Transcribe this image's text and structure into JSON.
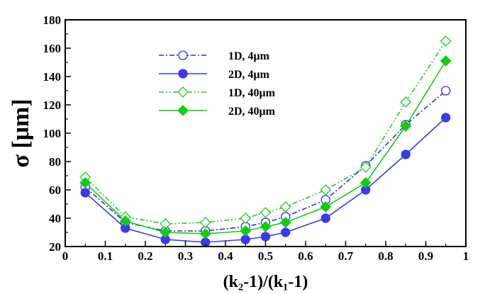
{
  "chart_data": {
    "type": "line",
    "xlabel": "(k₂-1)/(k₁-1)",
    "ylabel": "σ [μm]",
    "xlim": [
      0,
      1
    ],
    "ylim": [
      20,
      180
    ],
    "xticks": [
      0,
      0.1,
      0.2,
      0.3,
      0.4,
      0.5,
      0.6,
      0.7,
      0.8,
      0.9,
      1
    ],
    "xtick_labels": [
      "0",
      "0.1",
      "0.2",
      "0.3",
      "0.4",
      "0.5",
      "0.6",
      "0.7",
      "0.8",
      "0.9",
      "1"
    ],
    "yticks": [
      20,
      40,
      60,
      80,
      100,
      120,
      140,
      160,
      180
    ],
    "ytick_labels": [
      "20",
      "40",
      "60",
      "80",
      "100",
      "120",
      "140",
      "160",
      "180"
    ],
    "grid": false,
    "legend_position": "upper-center",
    "x": [
      0.05,
      0.15,
      0.25,
      0.35,
      0.45,
      0.5,
      0.55,
      0.65,
      0.75,
      0.85,
      0.95
    ],
    "series": [
      {
        "name": "1D, 4μm",
        "values": [
          62,
          37,
          31,
          31,
          34,
          37,
          41,
          53,
          77,
          106,
          130
        ],
        "color": "#2e2ee6",
        "line": "dashdot",
        "marker": "circle-open"
      },
      {
        "name": "2D, 4μm",
        "values": [
          58,
          33,
          25,
          23,
          25,
          27,
          30,
          40,
          60,
          85,
          111
        ],
        "color": "#3a3ae8",
        "line": "solid",
        "marker": "circle-filled"
      },
      {
        "name": "1D, 40μm",
        "values": [
          69,
          41,
          36,
          37,
          40,
          44,
          48,
          60,
          76,
          122,
          165
        ],
        "color": "#22cc22",
        "line": "dashdotdot",
        "marker": "diamond-open"
      },
      {
        "name": "2D, 40μm",
        "values": [
          65,
          38,
          30,
          29,
          31,
          34,
          37,
          48,
          65,
          105,
          151
        ],
        "color": "#11cc11",
        "line": "solid",
        "marker": "diamond-filled"
      }
    ]
  }
}
